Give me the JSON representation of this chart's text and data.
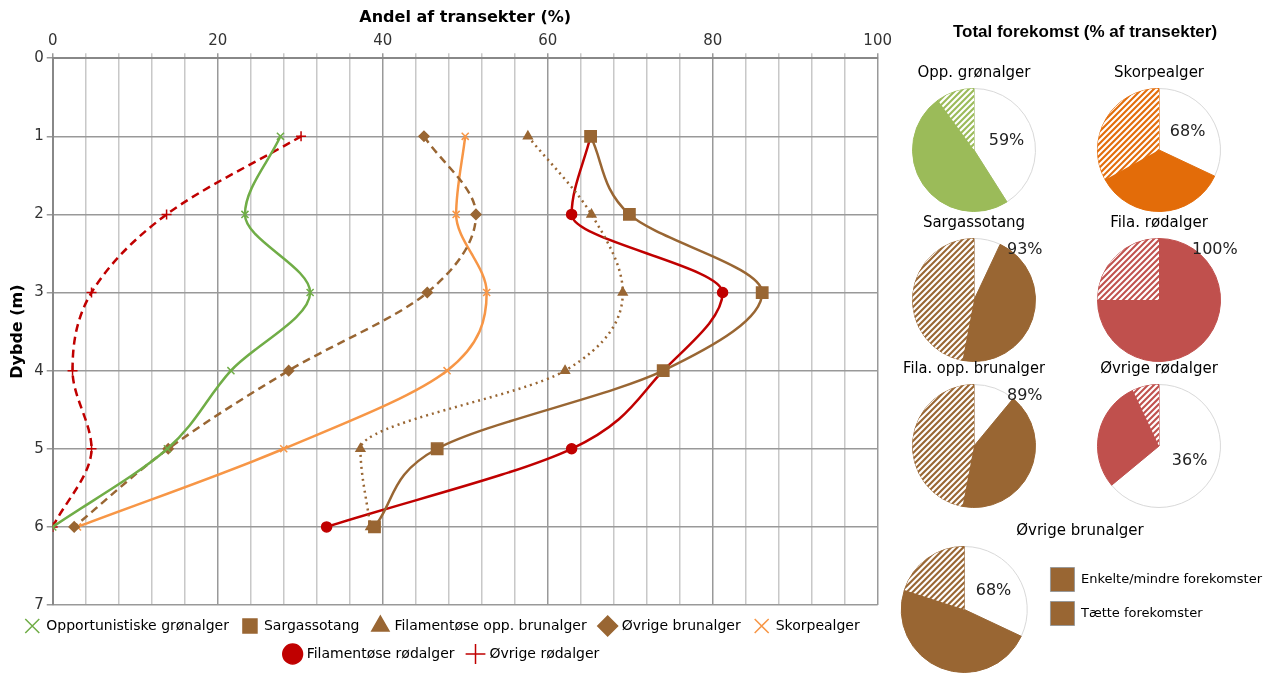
{
  "chart_data": [
    {
      "type": "line",
      "orientation": "horizontal",
      "xlabel": "Andel af transekter (%)",
      "ylabel": "Dybde (m)",
      "categories": [
        "0",
        "1",
        "2",
        "3",
        "4",
        "5",
        "6",
        "7"
      ],
      "xlim": [
        0,
        100
      ],
      "xticks": [
        0,
        {
          "value": 4,
          "label": null
        },
        {
          "value": 8,
          "label": null
        },
        {
          "value": 12,
          "label": null
        },
        {
          "value": 16,
          "label": null
        },
        20,
        {
          "value": 24,
          "label": null
        },
        {
          "value": 28,
          "label": null
        },
        {
          "value": 32,
          "label": null
        },
        {
          "value": 36,
          "label": null
        },
        40,
        {
          "value": 44,
          "label": null
        },
        {
          "value": 48,
          "label": null
        },
        {
          "value": 52,
          "label": null
        },
        {
          "value": 56,
          "label": null
        },
        60,
        {
          "value": 64,
          "label": null
        },
        {
          "value": 68,
          "label": null
        },
        {
          "value": 72,
          "label": null
        },
        {
          "value": 76,
          "label": null
        },
        80,
        {
          "value": 84,
          "label": null
        },
        {
          "value": 88,
          "label": null
        },
        {
          "value": 92,
          "label": null
        },
        {
          "value": 96,
          "label": null
        },
        100
      ],
      "grid": true,
      "legend": "bottom",
      "series": [
        {
          "name": "Opportunistiske grønalger",
          "color": "#70ad47",
          "marker": "cross",
          "line_style": "solid",
          "values": [
            null,
            27.6,
            23.3,
            31.2,
            21.6,
            13.9,
            0,
            null
          ]
        },
        {
          "name": "Sargassotang",
          "color": "#996633",
          "marker": "square",
          "line_style": "solid",
          "values": [
            null,
            65.2,
            69.9,
            86,
            74,
            46.6,
            39,
            null
          ]
        },
        {
          "name": "Filamentøse opp. brunalger",
          "color": "#996633",
          "marker": "triangle",
          "line_style": "dotted",
          "values": [
            null,
            57.6,
            65.3,
            69.1,
            62.1,
            37.3,
            38.5,
            null
          ]
        },
        {
          "name": "Øvrige brunalger",
          "color": "#996633",
          "marker": "diamond",
          "line_style": "dashed",
          "values": [
            null,
            45,
            51.3,
            45.4,
            28.6,
            14,
            2.6,
            null
          ]
        },
        {
          "name": "Skorpealger",
          "color": "#f79646",
          "marker": "cross",
          "line_style": "solid",
          "values": [
            null,
            50,
            48.9,
            52.6,
            47.8,
            28,
            3,
            null
          ]
        },
        {
          "name": "Filamentøse rødalger",
          "color": "#c00000",
          "marker": "circle",
          "line_style": "solid",
          "values": [
            null,
            65.2,
            62.9,
            81.2,
            74,
            62.9,
            33.2,
            null
          ]
        },
        {
          "name": "Øvrige rødalger",
          "color": "#c00000",
          "marker": "plus",
          "line_style": "dashed",
          "values": [
            null,
            30.1,
            13.8,
            4.7,
            2.4,
            4.7,
            0,
            null
          ]
        }
      ]
    },
    {
      "type": "other",
      "title": "Total forekomst (% af transekter)"
    },
    {
      "type": "pie",
      "title": "Opp. grønalger",
      "categories": [
        null,
        null,
        null
      ],
      "values": [
        41,
        49,
        10
      ],
      "colors": [
        "#ffffff",
        "#9bbb59",
        "#9bbb59"
      ],
      "annotations": [
        "59%"
      ]
    },
    {
      "type": "pie",
      "title": "Skorpealger",
      "categories": [
        null,
        null,
        null
      ],
      "values": [
        32,
        35,
        33
      ],
      "colors": [
        "#ffffff",
        "#e36c09",
        "#e36c09"
      ],
      "annotations": [
        "68%"
      ]
    },
    {
      "type": "pie",
      "title": "Sargassotang",
      "categories": [
        null,
        null,
        null
      ],
      "values": [
        7,
        46,
        47
      ],
      "colors": [
        "#ffffff",
        "#996633",
        "#996633"
      ],
      "annotations": [
        "93%"
      ]
    },
    {
      "type": "pie",
      "title": "Fila. rødalger",
      "categories": [
        null,
        null,
        null
      ],
      "values": [
        0,
        75,
        25
      ],
      "colors": [
        "#ffffff",
        "#c0504d",
        "#c0504d"
      ],
      "annotations": [
        "100%"
      ]
    },
    {
      "type": "pie",
      "title": "Fila. opp. brunalger",
      "categories": [
        null,
        null,
        null
      ],
      "values": [
        11,
        42,
        47
      ],
      "colors": [
        "#ffffff",
        "#996633",
        "#996633"
      ],
      "annotations": [
        "89%"
      ]
    },
    {
      "type": "pie",
      "title": "Øvrige rødalger",
      "categories": [
        null,
        null,
        null
      ],
      "values": [
        64,
        29,
        7
      ],
      "colors": [
        "#ffffff",
        "#c0504d",
        "#c0504d"
      ],
      "annotations": [
        "36%"
      ]
    },
    {
      "type": "pie",
      "title": "Øvrige brunalger",
      "categories": [
        null,
        "Enkelte/mindre forekomster",
        "Tætte forekomster"
      ],
      "values": [
        32,
        48,
        20
      ],
      "colors": [
        "#ffffff",
        "#996633",
        "#996633"
      ],
      "annotations": [
        "68%"
      ],
      "legend": "right"
    }
  ]
}
